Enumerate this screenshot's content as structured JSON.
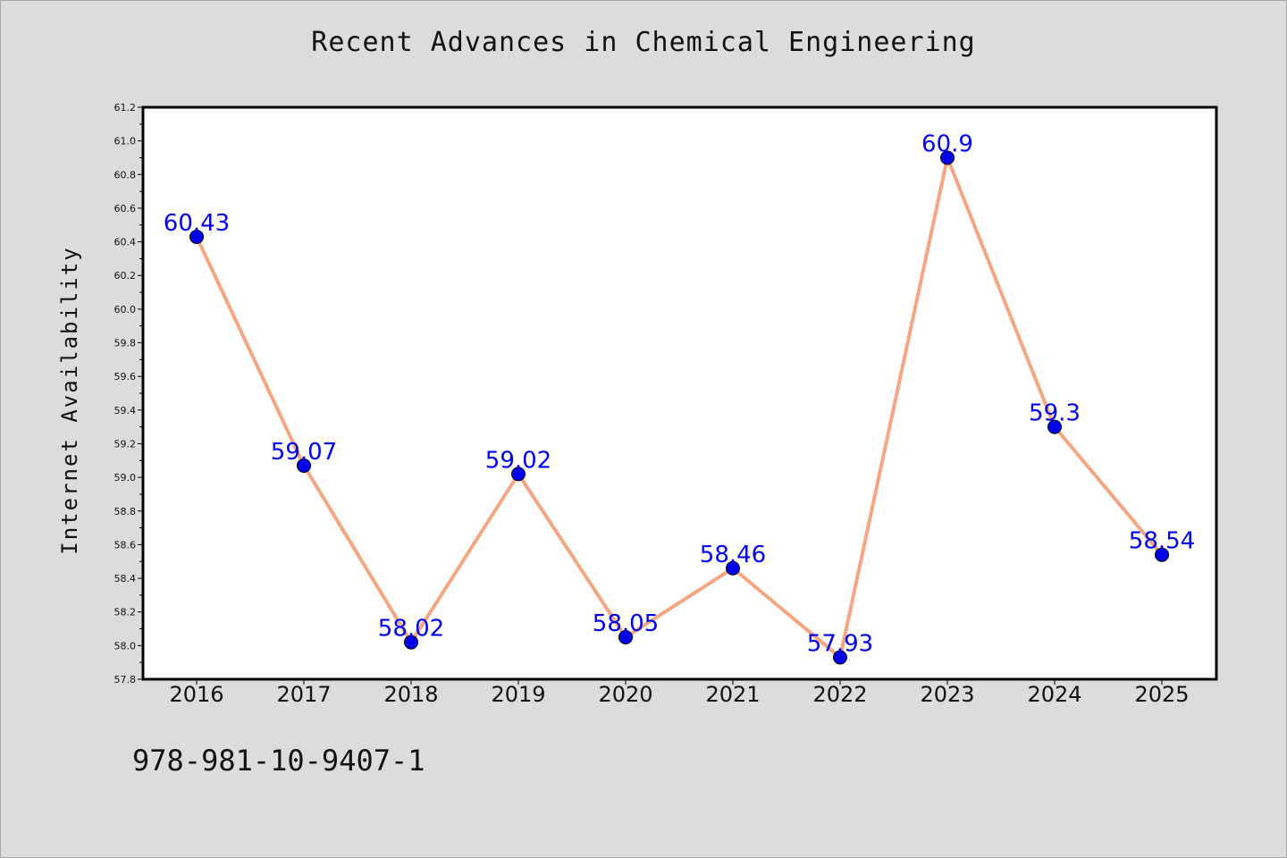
{
  "chart_data": {
    "type": "line",
    "title": "Recent Advances in Chemical Engineering",
    "xlabel": "",
    "ylabel": "Internet Availability",
    "categories": [
      "2016",
      "2017",
      "2018",
      "2019",
      "2020",
      "2021",
      "2022",
      "2023",
      "2024",
      "2025"
    ],
    "values": [
      60.43,
      59.07,
      58.02,
      59.02,
      58.05,
      58.46,
      57.93,
      60.9,
      59.3,
      58.54
    ],
    "data_labels": [
      "60.43",
      "59.07",
      "58.02",
      "59.02",
      "58.05",
      "58.46",
      "57.93",
      "60.9",
      "59.3",
      "58.54"
    ],
    "ylim": [
      57.8,
      61.2
    ],
    "yticks": [
      "57.8",
      "58.0",
      "58.2",
      "58.4",
      "58.6",
      "58.8",
      "59.0",
      "59.2",
      "59.4",
      "59.6",
      "59.8",
      "60.0",
      "60.2",
      "60.4",
      "60.6",
      "60.8",
      "61.0",
      "61.2"
    ],
    "grid": false,
    "line_color": "#f4a582",
    "marker_color": "#0000ee",
    "label_color": "#0000ee"
  },
  "footer": {
    "isbn": "978-981-10-9407-1"
  }
}
